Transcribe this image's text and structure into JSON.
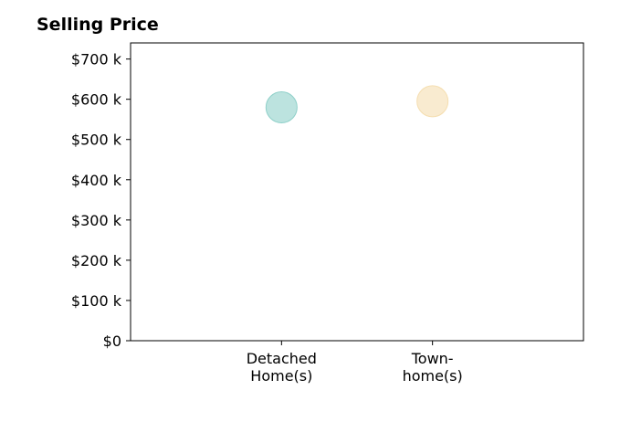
{
  "chart_data": {
    "type": "scatter",
    "title": "Selling Price",
    "xlabel": "",
    "ylabel": "",
    "categories": [
      [
        "Detached",
        "Home(s)"
      ],
      [
        "Town-",
        "home(s)"
      ]
    ],
    "values": [
      580000,
      595000
    ],
    "colors": [
      "#8fd0c9",
      "#f5deb0"
    ],
    "ylim": [
      0,
      740000
    ],
    "y_ticks": [
      {
        "value": 0,
        "label": "$0"
      },
      {
        "value": 100000,
        "label": "$100 k"
      },
      {
        "value": 200000,
        "label": "$200 k"
      },
      {
        "value": 300000,
        "label": "$300 k"
      },
      {
        "value": 400000,
        "label": "$400 k"
      },
      {
        "value": 500000,
        "label": "$500 k"
      },
      {
        "value": 600000,
        "label": "$600 k"
      },
      {
        "value": 700000,
        "label": "$700 k"
      }
    ],
    "grid": false,
    "legend": "none"
  }
}
